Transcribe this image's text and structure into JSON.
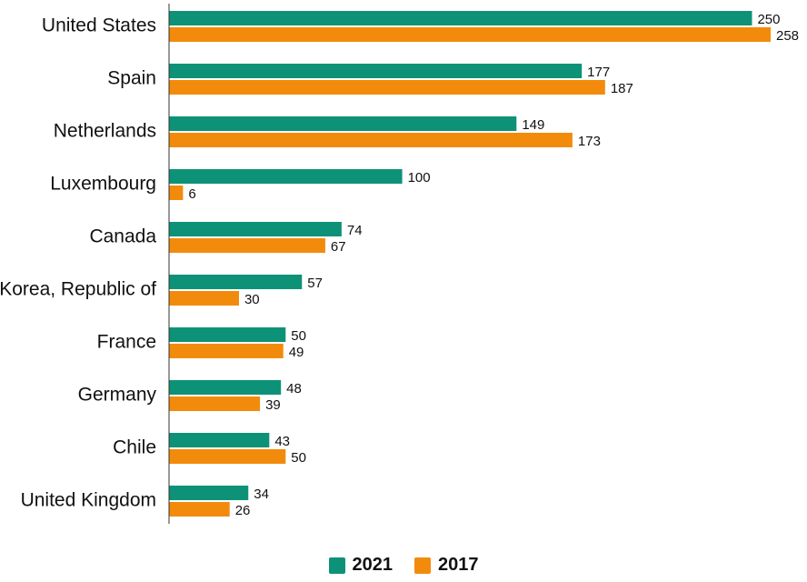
{
  "chart_data": {
    "type": "bar",
    "orientation": "horizontal",
    "categories": [
      "United States",
      "Spain",
      "Netherlands",
      "Luxembourg",
      "Canada",
      "Korea, Republic of",
      "France",
      "Germany",
      "Chile",
      "United Kingdom"
    ],
    "series": [
      {
        "name": "2021",
        "color": "#0e9277",
        "values": [
          250,
          177,
          149,
          100,
          74,
          57,
          50,
          48,
          43,
          34
        ]
      },
      {
        "name": "2017",
        "color": "#f28b0c",
        "values": [
          258,
          187,
          173,
          6,
          67,
          30,
          49,
          39,
          50,
          26
        ]
      }
    ],
    "title": "",
    "xlabel": "",
    "ylabel": "",
    "xlim": [
      0,
      258
    ],
    "grid": false,
    "legend_position": "bottom-center",
    "data_labels": true
  }
}
